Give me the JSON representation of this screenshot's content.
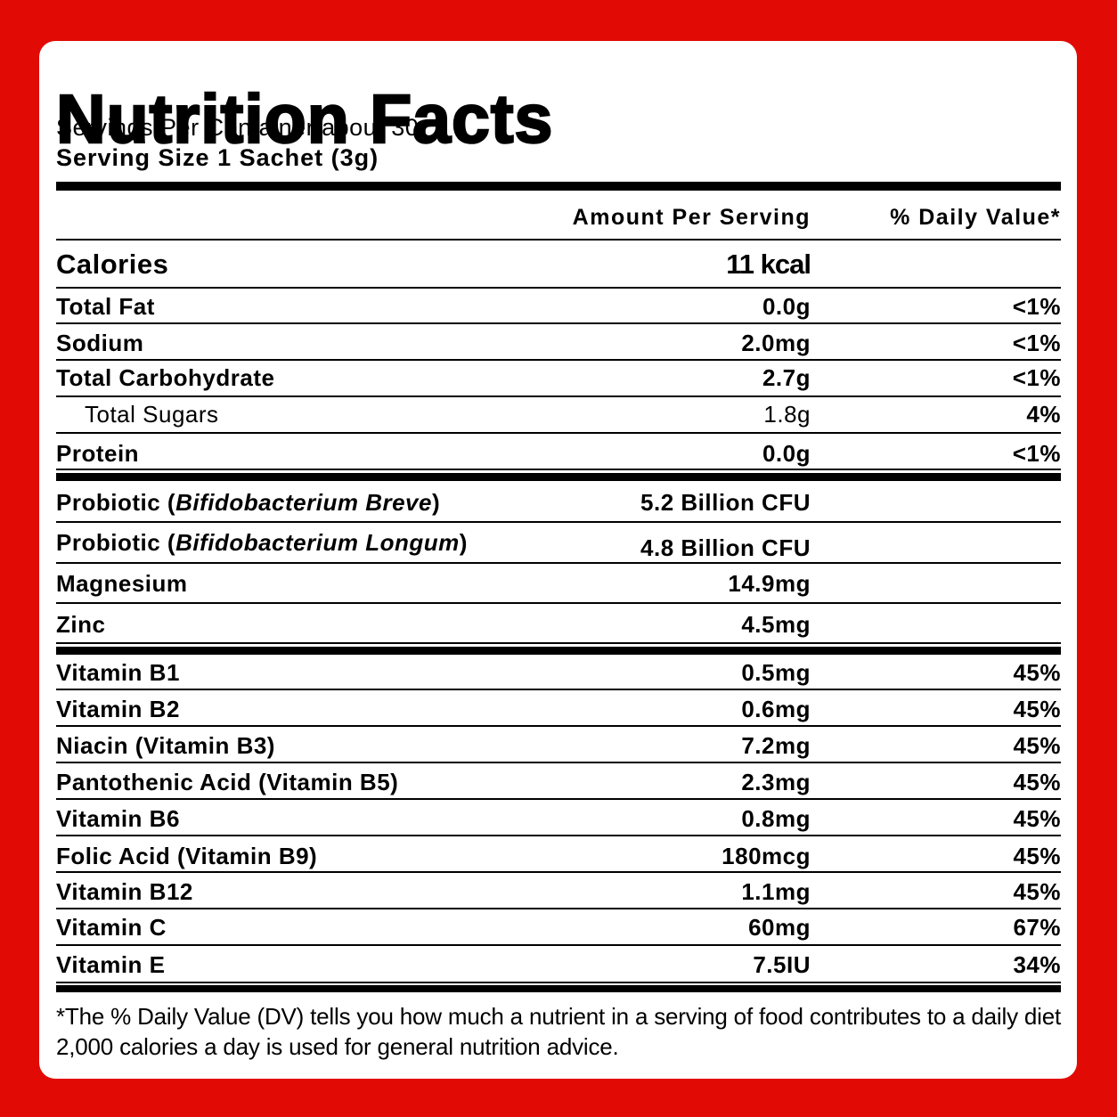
{
  "label": {
    "title": "Nutrition Facts",
    "servings_per_container": "Servings Per Container about 30",
    "serving_size": "Serving Size 1 Sachet (3g)",
    "header_amount": "Amount Per Serving",
    "header_dv": "% Daily Value*",
    "calories": {
      "name": "Calories",
      "amount": "11 kcal"
    },
    "macros": [
      {
        "name": "Total Fat",
        "amount": "0.0g",
        "dv": "<1%"
      },
      {
        "name": "Sodium",
        "amount": "2.0mg",
        "dv": "<1%"
      },
      {
        "name": "Total Carbohydrate",
        "amount": "2.7g",
        "dv": "<1%"
      },
      {
        "name": "Total Sugars",
        "amount": "1.8g",
        "dv": "4%"
      },
      {
        "name": "Protein",
        "amount": "0.0g",
        "dv": "<1%"
      }
    ],
    "probiotics": [
      {
        "prefix": "Probiotic (",
        "strain": "Bifidobacterium Breve",
        "suffix": ")",
        "amount": "5.2 Billion CFU"
      },
      {
        "prefix": "Probiotic (",
        "strain": "Bifidobacterium Longum",
        "suffix": ")",
        "amount": "4.8 Billion CFU"
      }
    ],
    "minerals": [
      {
        "name": "Magnesium",
        "amount": "14.9mg"
      },
      {
        "name": "Zinc",
        "amount": "4.5mg"
      }
    ],
    "vitamins": [
      {
        "name": "Vitamin B1",
        "amount": "0.5mg",
        "dv": "45%"
      },
      {
        "name": "Vitamin B2",
        "amount": "0.6mg",
        "dv": "45%"
      },
      {
        "name": "Niacin (Vitamin B3)",
        "amount": "7.2mg",
        "dv": "45%"
      },
      {
        "name": "Pantothenic Acid (Vitamin B5)",
        "amount": "2.3mg",
        "dv": "45%"
      },
      {
        "name": "Vitamin B6",
        "amount": "0.8mg",
        "dv": "45%"
      },
      {
        "name": "Folic Acid (Vitamin B9)",
        "amount": "180mcg",
        "dv": "45%"
      },
      {
        "name": "Vitamin B12",
        "amount": "1.1mg",
        "dv": "45%"
      },
      {
        "name": "Vitamin C",
        "amount": "60mg",
        "dv": "67%"
      },
      {
        "name": "Vitamin E",
        "amount": "7.5IU",
        "dv": "34%"
      }
    ],
    "footnote": "*The % Daily Value (DV) tells you how much a nutrient in a serving of food contributes to a daily diet 2,000 calories a day is used for general nutrition advice."
  },
  "colors": {
    "background": "#e20a05",
    "panel": "#ffffff",
    "text": "#000000"
  }
}
